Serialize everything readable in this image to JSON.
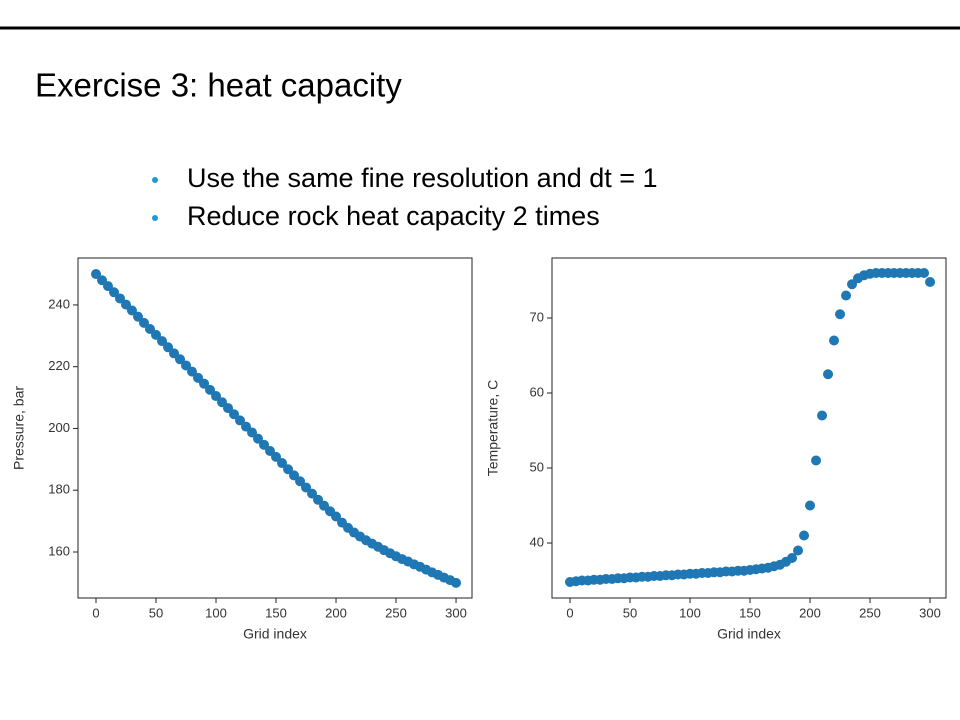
{
  "slide": {
    "title": "Exercise 3: heat capacity",
    "bullets": [
      "Use the same fine resolution and dt = 1",
      "Reduce rock heat capacity 2 times"
    ]
  },
  "chart_data": [
    {
      "type": "scatter",
      "x_label": "Grid index",
      "y_label": "Pressure, bar",
      "color": "#1f77b4",
      "xlim": [
        -15,
        313.3
      ],
      "ylim": [
        145.1,
        255.2
      ],
      "xticks": [
        0,
        50,
        100,
        150,
        200,
        250,
        300
      ],
      "yticks": [
        160,
        180,
        200,
        220,
        240
      ],
      "x": [
        0,
        5,
        10,
        15,
        20,
        25,
        30,
        35,
        40,
        45,
        50,
        55,
        60,
        65,
        70,
        75,
        80,
        85,
        90,
        95,
        100,
        105,
        110,
        115,
        120,
        125,
        130,
        135,
        140,
        145,
        150,
        155,
        160,
        165,
        170,
        175,
        180,
        185,
        190,
        195,
        200,
        205,
        210,
        215,
        220,
        225,
        230,
        235,
        240,
        245,
        250,
        255,
        260,
        265,
        270,
        275,
        280,
        285,
        290,
        295,
        300
      ],
      "values": [
        250,
        248.0,
        246.1,
        244.1,
        242.1,
        240.1,
        238.2,
        236.2,
        234.2,
        232.2,
        230.3,
        228.3,
        226.3,
        224.3,
        222.4,
        220.4,
        218.4,
        216.4,
        214.5,
        212.5,
        210.5,
        208.5,
        206.6,
        204.6,
        202.6,
        200.6,
        198.7,
        196.7,
        194.7,
        192.7,
        190.8,
        188.8,
        186.8,
        184.8,
        182.9,
        180.9,
        178.9,
        176.9,
        175.0,
        173.2,
        171.5,
        169.5,
        167.8,
        166.3,
        165.0,
        163.8,
        162.7,
        161.7,
        160.6,
        159.6,
        158.6,
        157.7,
        156.9,
        156.0,
        155.2,
        154.3,
        153.4,
        152.6,
        151.7,
        150.9,
        150.0
      ]
    },
    {
      "type": "scatter",
      "x_label": "Grid index",
      "y_label": "Temperature, C",
      "color": "#1f77b4",
      "xlim": [
        -15,
        313.3
      ],
      "ylim": [
        32.67,
        78
      ],
      "xticks": [
        0,
        50,
        100,
        150,
        200,
        250,
        300
      ],
      "yticks": [
        40,
        50,
        60,
        70
      ],
      "x": [
        0,
        5,
        10,
        15,
        20,
        25,
        30,
        35,
        40,
        45,
        50,
        55,
        60,
        65,
        70,
        75,
        80,
        85,
        90,
        95,
        100,
        105,
        110,
        115,
        120,
        125,
        130,
        135,
        140,
        145,
        150,
        155,
        160,
        165,
        170,
        175,
        180,
        185,
        190,
        195,
        200,
        205,
        210,
        215,
        220,
        225,
        230,
        235,
        240,
        245,
        250,
        255,
        260,
        265,
        270,
        275,
        280,
        285,
        290,
        295,
        300
      ],
      "values": [
        34.8,
        34.9,
        35.0,
        35.0,
        35.1,
        35.1,
        35.2,
        35.2,
        35.3,
        35.3,
        35.4,
        35.4,
        35.5,
        35.5,
        35.6,
        35.6,
        35.7,
        35.7,
        35.8,
        35.8,
        35.9,
        35.9,
        36.0,
        36.0,
        36.1,
        36.1,
        36.2,
        36.2,
        36.3,
        36.3,
        36.4,
        36.5,
        36.6,
        36.7,
        36.9,
        37.1,
        37.5,
        38.0,
        39.0,
        41.0,
        45.0,
        51.0,
        57.0,
        62.5,
        67.0,
        70.5,
        73.0,
        74.5,
        75.3,
        75.7,
        75.9,
        76.0,
        76.0,
        76.0,
        76.0,
        76.0,
        76.0,
        76.0,
        76.0,
        76.0,
        74.8
      ]
    }
  ]
}
